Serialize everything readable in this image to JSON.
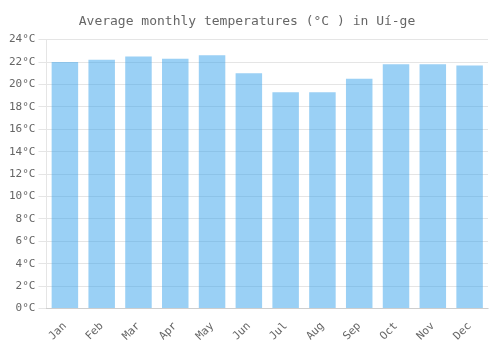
{
  "chart_data": {
    "type": "bar",
    "title": "Average monthly temperatures (°C ) in Uí-ge",
    "categories": [
      "Jan",
      "Feb",
      "Mar",
      "Apr",
      "May",
      "Jun",
      "Jul",
      "Aug",
      "Sep",
      "Oct",
      "Nov",
      "Dec"
    ],
    "values": [
      22.0,
      22.2,
      22.5,
      22.3,
      22.6,
      21.0,
      19.3,
      19.3,
      20.5,
      21.8,
      21.8,
      21.7
    ],
    "ylim": [
      0,
      24
    ],
    "yticks": [
      {
        "value": 0,
        "label": "0°C"
      },
      {
        "value": 2,
        "label": "2°C"
      },
      {
        "value": 4,
        "label": "4°C"
      },
      {
        "value": 6,
        "label": "6°C"
      },
      {
        "value": 8,
        "label": "8°C"
      },
      {
        "value": 10,
        "label": "10°C"
      },
      {
        "value": 12,
        "label": "12°C"
      },
      {
        "value": 14,
        "label": "14°C"
      },
      {
        "value": 16,
        "label": "16°C"
      },
      {
        "value": 18,
        "label": "18°C"
      },
      {
        "value": 20,
        "label": "20°C"
      },
      {
        "value": 22,
        "label": "22°C"
      },
      {
        "value": 24,
        "label": "24°C"
      }
    ],
    "grid": true
  }
}
